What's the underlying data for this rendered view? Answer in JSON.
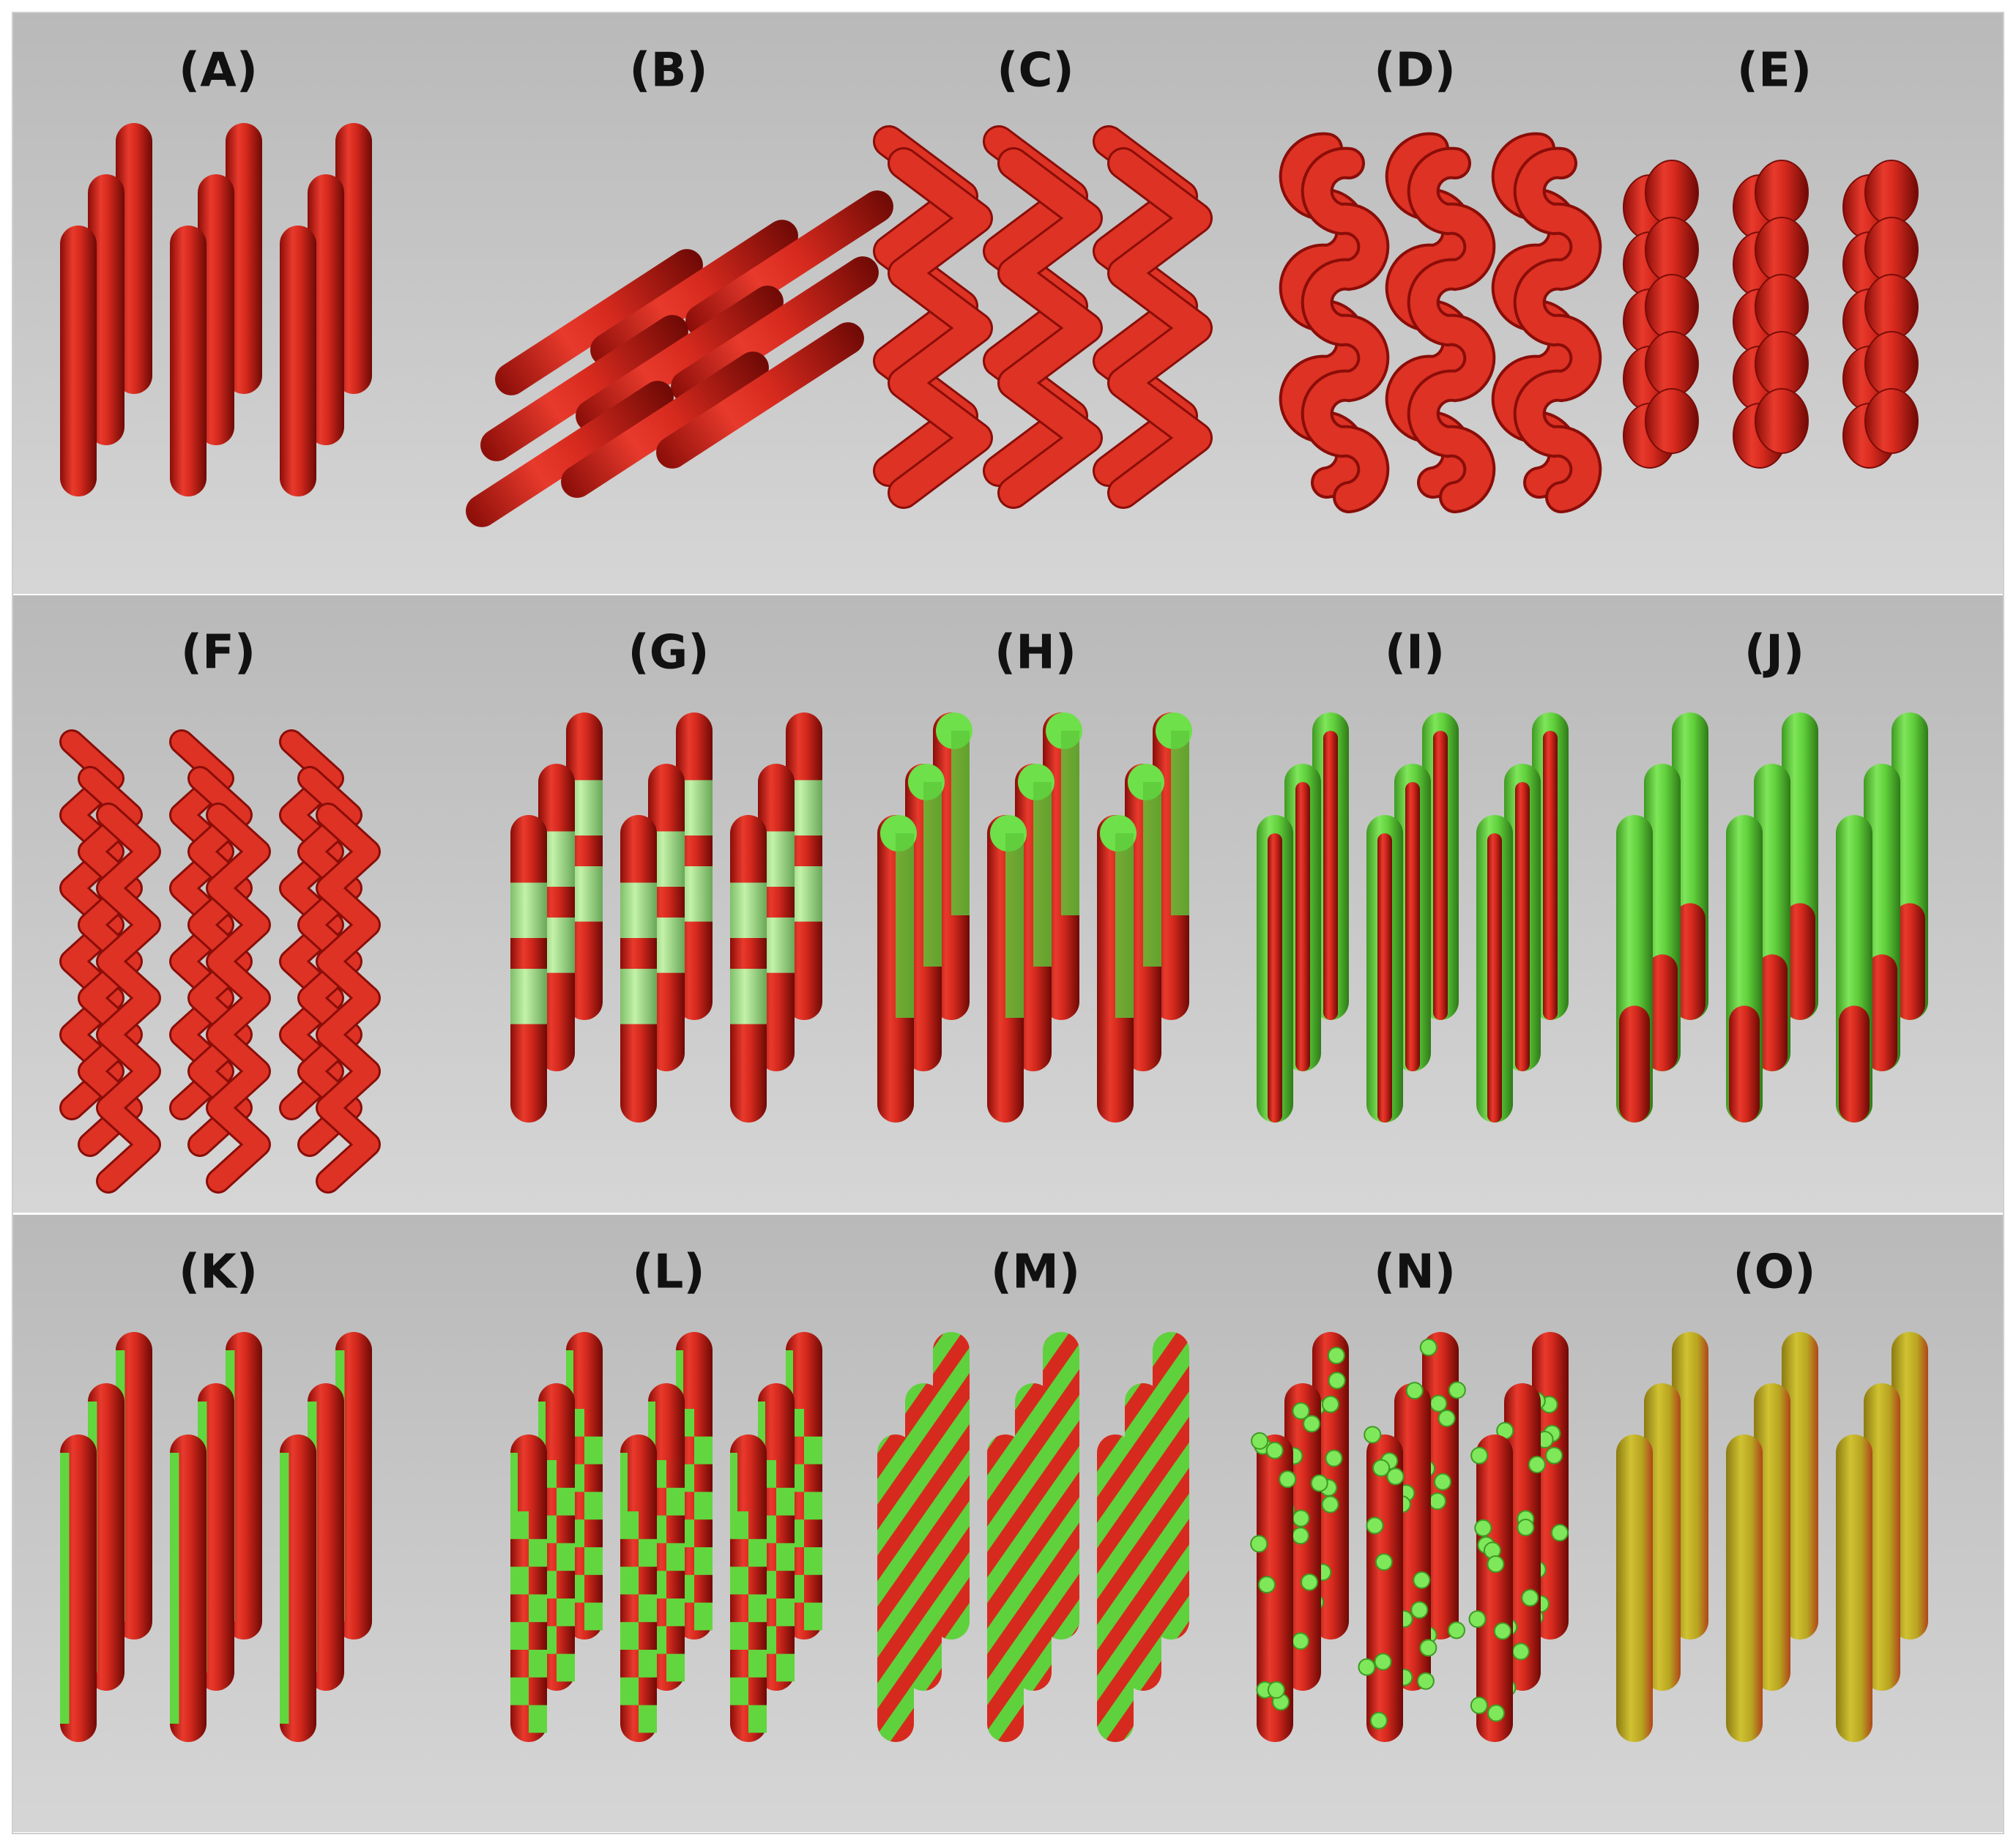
{
  "panels": [
    {
      "label": "(A)"
    },
    {
      "label": "(B)"
    },
    {
      "label": "(C)"
    },
    {
      "label": "(D)"
    },
    {
      "label": "(E)"
    },
    {
      "label": "(F)"
    },
    {
      "label": "(G)"
    },
    {
      "label": "(H)"
    },
    {
      "label": "(I)"
    },
    {
      "label": "(J)"
    },
    {
      "label": "(K)"
    },
    {
      "label": "(L)"
    },
    {
      "label": "(M)"
    },
    {
      "label": "(N)"
    },
    {
      "label": "(O)"
    }
  ]
}
